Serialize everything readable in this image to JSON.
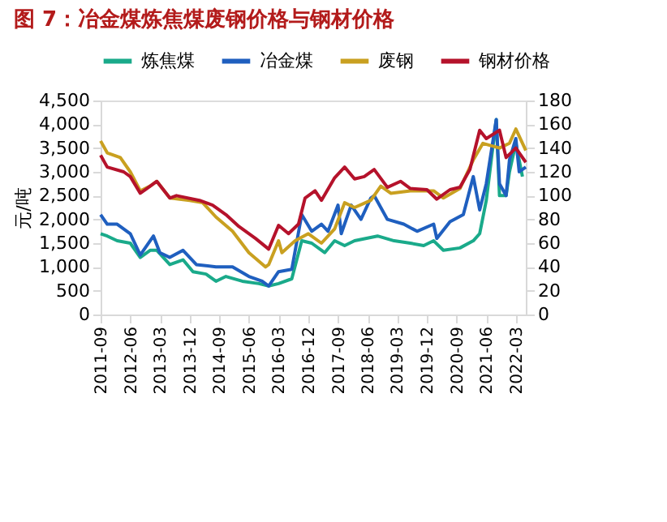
{
  "chart_data": {
    "type": "line",
    "title": "图 7：冶金煤炼焦煤废钢价格与钢材价格",
    "ylabel": "元/吨",
    "xlim": [
      "2011-09",
      "2022-06"
    ],
    "xticks": [
      "2011-09",
      "2012-06",
      "2013-03",
      "2013-12",
      "2014-09",
      "2015-06",
      "2016-03",
      "2016-12",
      "2017-09",
      "2018-06",
      "2019-03",
      "2019-12",
      "2020-09",
      "2021-06",
      "2022-03"
    ],
    "ylim": [
      0,
      4500
    ],
    "yticks": [
      0,
      500,
      {
        "value": 1000,
        "label": "1,000"
      },
      {
        "value": 1500,
        "label": "1,500"
      },
      {
        "value": 2000,
        "label": "2,000"
      },
      {
        "value": 2500,
        "label": "2,500"
      },
      {
        "value": 3000,
        "label": "3,000"
      },
      {
        "value": 3500,
        "label": "3,500"
      },
      {
        "value": 4000,
        "label": "4,000"
      },
      {
        "value": 4500,
        "label": "4,500"
      }
    ],
    "y2lim": [
      0,
      180
    ],
    "y2ticks": [
      0,
      20,
      40,
      60,
      80,
      100,
      120,
      140,
      160,
      180
    ],
    "legend": "top",
    "grid": false,
    "series": [
      {
        "name": "炼焦煤",
        "color": "#1aaa8a",
        "x": [
          "2011-09",
          "2011-11",
          "2012-02",
          "2012-06",
          "2012-09",
          "2012-12",
          "2013-02",
          "2013-06",
          "2013-10",
          "2014-01",
          "2014-05",
          "2014-08",
          "2014-11",
          "2015-04",
          "2015-09",
          "2015-12",
          "2016-03",
          "2016-07",
          "2016-10",
          "2017-01",
          "2017-05",
          "2017-08",
          "2017-11",
          "2018-02",
          "2018-09",
          "2019-02",
          "2019-07",
          "2019-11",
          "2020-02",
          "2020-05",
          "2020-10",
          "2021-02",
          "2021-04",
          "2021-06",
          "2021-09",
          "2021-10",
          "2021-12",
          "2022-01",
          "2022-03",
          "2022-05"
        ],
        "values": [
          1700,
          1650,
          1550,
          1500,
          1200,
          1350,
          1350,
          1050,
          1150,
          900,
          850,
          700,
          800,
          700,
          650,
          600,
          650,
          750,
          1550,
          1500,
          1300,
          1550,
          1450,
          1550,
          1650,
          1550,
          1500,
          1450,
          1550,
          1350,
          1400,
          1550,
          1700,
          2400,
          4100,
          2500,
          2500,
          3000,
          3600,
          2900
        ]
      },
      {
        "name": "冶金煤",
        "color": "#1f5fbf",
        "x": [
          "2011-09",
          "2011-11",
          "2012-02",
          "2012-06",
          "2012-09",
          "2012-11",
          "2013-01",
          "2013-03",
          "2013-06",
          "2013-10",
          "2014-02",
          "2014-08",
          "2015-01",
          "2015-06",
          "2015-10",
          "2015-12",
          "2016-03",
          "2016-07",
          "2016-10",
          "2017-01",
          "2017-04",
          "2017-06",
          "2017-09",
          "2017-10",
          "2018-01",
          "2018-04",
          "2018-07",
          "2018-08",
          "2018-12",
          "2019-05",
          "2019-09",
          "2020-02",
          "2020-03",
          "2020-07",
          "2020-11",
          "2021-02",
          "2021-04",
          "2021-06",
          "2021-09",
          "2021-10",
          "2021-12",
          "2022-01",
          "2022-03",
          "2022-04",
          "2022-06"
        ],
        "values": [
          2100,
          1900,
          1900,
          1700,
          1250,
          1450,
          1650,
          1300,
          1200,
          1350,
          1050,
          1000,
          1000,
          800,
          700,
          600,
          900,
          950,
          2100,
          1750,
          1900,
          1750,
          2300,
          1700,
          2300,
          2000,
          2450,
          2500,
          2000,
          1900,
          1750,
          1900,
          1600,
          1950,
          2100,
          2900,
          2200,
          2750,
          4100,
          2750,
          2500,
          3250,
          3700,
          3000,
          3100
        ]
      },
      {
        "name": "废钢",
        "color": "#c9a020",
        "x": [
          "2011-09",
          "2011-11",
          "2012-03",
          "2012-06",
          "2012-09",
          "2012-12",
          "2013-02",
          "2013-06",
          "2013-12",
          "2014-04",
          "2014-08",
          "2015-01",
          "2015-06",
          "2015-11",
          "2015-12",
          "2016-03",
          "2016-04",
          "2016-08",
          "2016-12",
          "2017-04",
          "2017-08",
          "2017-11",
          "2018-02",
          "2018-07",
          "2018-10",
          "2019-01",
          "2019-07",
          "2020-02",
          "2020-05",
          "2020-10",
          "2021-02",
          "2021-05",
          "2021-10",
          "2022-01",
          "2022-03",
          "2022-06"
        ],
        "values": [
          3650,
          3400,
          3300,
          3000,
          2600,
          2700,
          2800,
          2450,
          2400,
          2350,
          2050,
          1750,
          1300,
          1000,
          1050,
          1550,
          1300,
          1550,
          1700,
          1500,
          1800,
          2350,
          2250,
          2400,
          2700,
          2550,
          2600,
          2600,
          2450,
          2650,
          3250,
          3600,
          3500,
          3600,
          3900,
          3450
        ]
      },
      {
        "name": "钢材价格",
        "color": "#b5122b",
        "axis": "y2",
        "x": [
          "2011-09",
          "2011-11",
          "2012-04",
          "2012-06",
          "2012-09",
          "2012-11",
          "2013-02",
          "2013-06",
          "2013-08",
          "2014-03",
          "2014-07",
          "2014-11",
          "2015-03",
          "2015-08",
          "2015-12",
          "2016-03",
          "2016-06",
          "2016-09",
          "2016-11",
          "2017-02",
          "2017-04",
          "2017-08",
          "2017-11",
          "2018-02",
          "2018-05",
          "2018-08",
          "2018-12",
          "2019-04",
          "2019-07",
          "2019-12",
          "2020-03",
          "2020-07",
          "2020-10",
          "2021-01",
          "2021-04",
          "2021-06",
          "2021-10",
          "2021-12",
          "2022-03",
          "2022-06"
        ],
        "values": [
          134,
          124,
          120,
          116,
          102,
          106,
          112,
          98,
          100,
          96,
          92,
          84,
          74,
          64,
          55,
          75,
          68,
          76,
          98,
          104,
          96,
          115,
          124,
          114,
          116,
          122,
          107,
          112,
          106,
          105,
          97,
          105,
          107,
          122,
          155,
          148,
          155,
          132,
          140,
          128
        ]
      }
    ]
  }
}
